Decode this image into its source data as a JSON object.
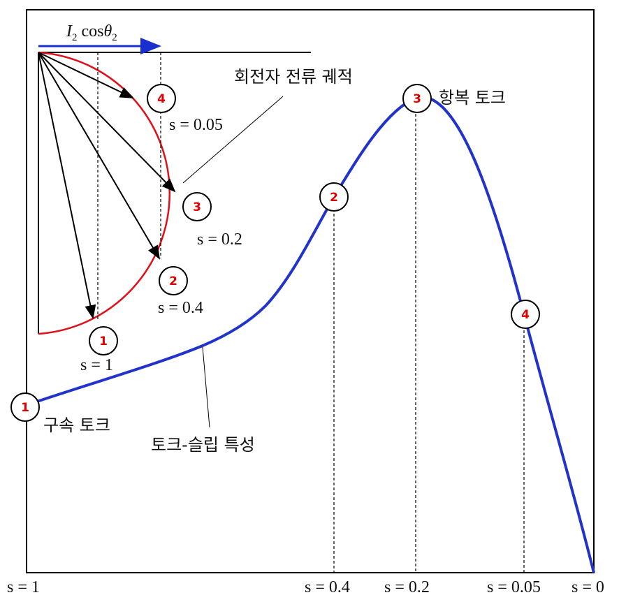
{
  "current_vector_label": {
    "symbol": "I",
    "subscript": "2",
    "function": "cos",
    "angle": "θ",
    "angle_subscript": "2"
  },
  "annotations": {
    "rotor_current_locus": "회전자 전류 궤적",
    "breakdown_torque": "항복 토크",
    "locked_rotor_torque": "구속 토크",
    "torque_slip_curve": "토크-슬립 특성"
  },
  "locus_points": [
    {
      "marker": "4",
      "slip": "s = 0.05"
    },
    {
      "marker": "3",
      "slip": "s = 0.2"
    },
    {
      "marker": "2",
      "slip": "s = 0.4"
    },
    {
      "marker": "1",
      "slip": "s = 1"
    }
  ],
  "curve_points": [
    {
      "marker": "1"
    },
    {
      "marker": "2"
    },
    {
      "marker": "3"
    },
    {
      "marker": "4"
    }
  ],
  "axis_labels": [
    "s = 1",
    "s = 0.4",
    "s = 0.2",
    "s = 0.05",
    "s = 0"
  ]
}
